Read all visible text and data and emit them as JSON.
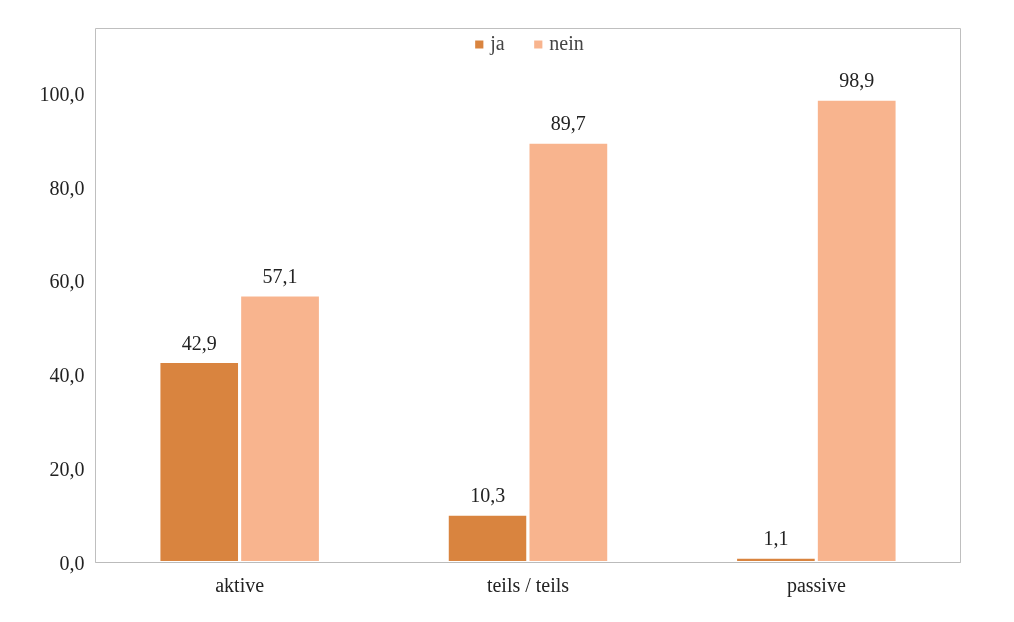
{
  "chart_data": {
    "type": "bar",
    "categories": [
      "aktive",
      "teils / teils",
      "passive"
    ],
    "series": [
      {
        "name": "ja",
        "color": "#d9843f",
        "values": [
          42.9,
          10.3,
          1.1
        ],
        "value_labels": [
          "42,9",
          "10,3",
          "1,1"
        ]
      },
      {
        "name": "nein",
        "color": "#f8b48e",
        "values": [
          57.1,
          89.7,
          98.9
        ],
        "value_labels": [
          "57,1",
          "89,7",
          "98,9"
        ]
      }
    ],
    "ylim": [
      0,
      114
    ],
    "yticks": [
      {
        "value": 0,
        "label": "0,0"
      },
      {
        "value": 20,
        "label": "20,0"
      },
      {
        "value": 40,
        "label": "40,0"
      },
      {
        "value": 60,
        "label": "60,0"
      },
      {
        "value": 80,
        "label": "80,0"
      },
      {
        "value": 100,
        "label": "100,0"
      }
    ],
    "grid": false,
    "legend": "top"
  }
}
